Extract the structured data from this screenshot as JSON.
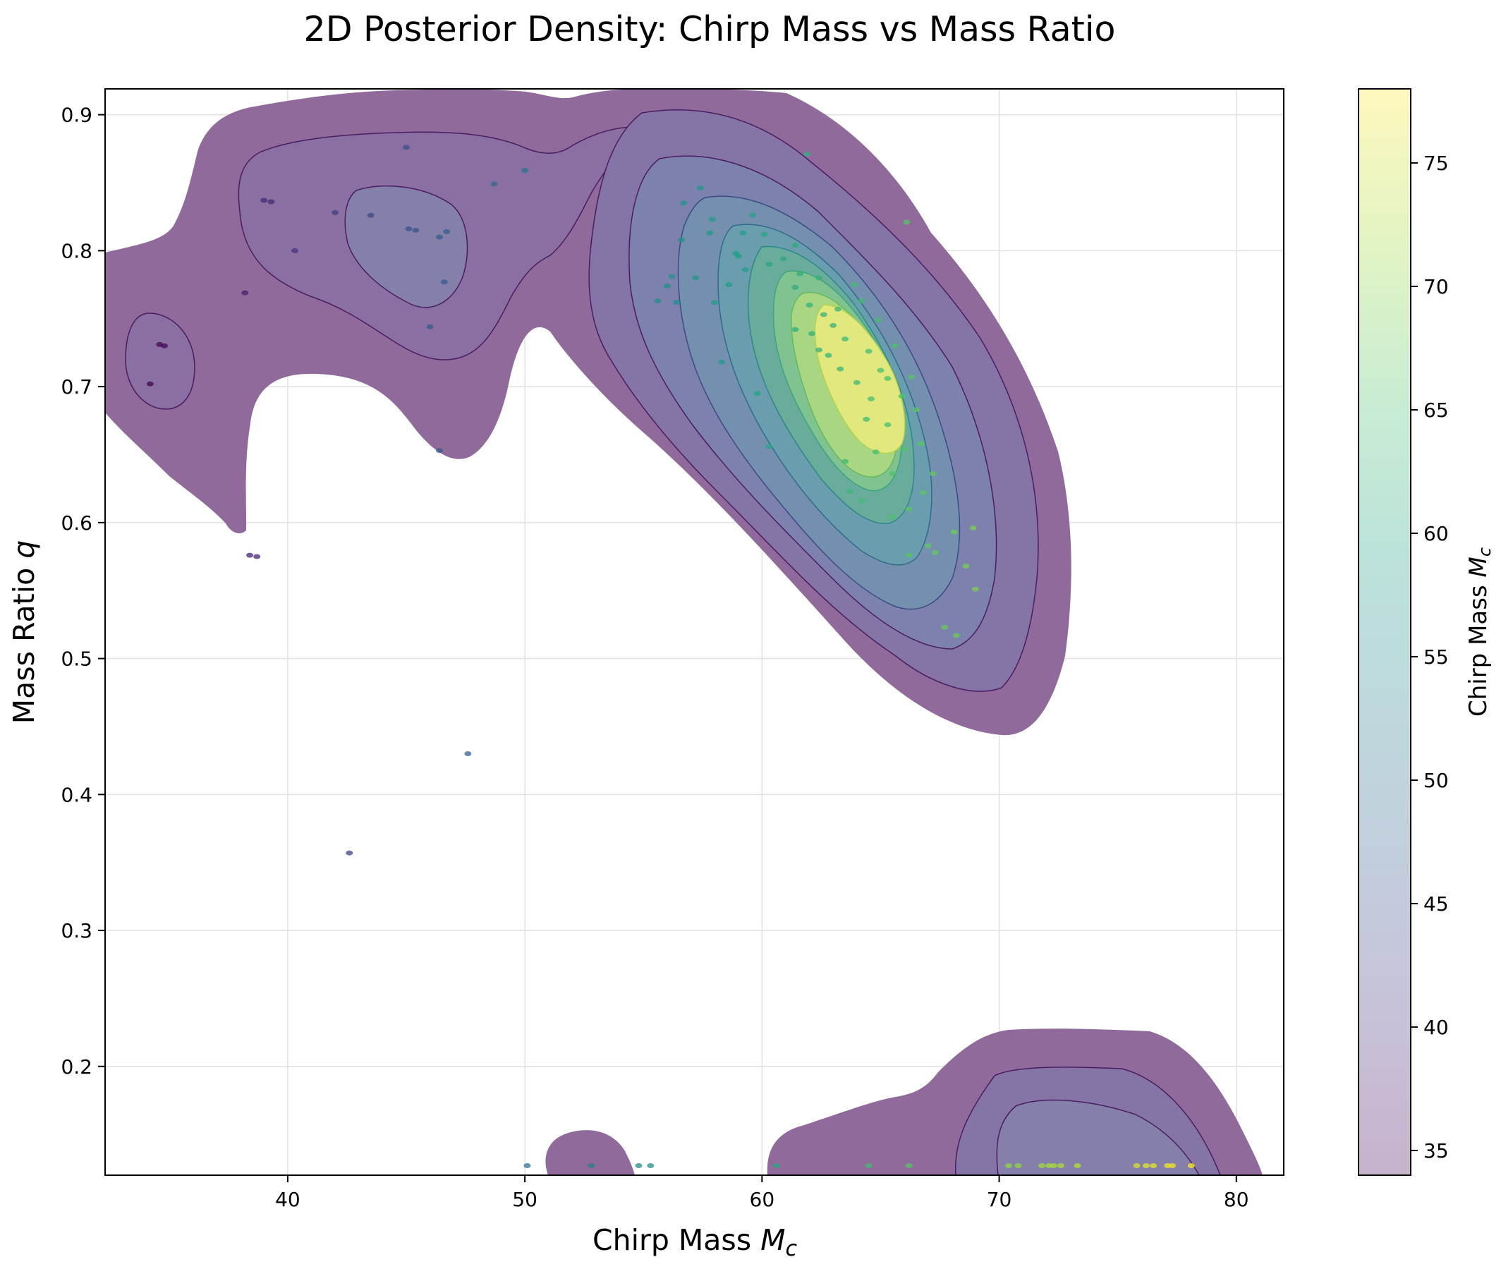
{
  "chart_data": {
    "type": "contour_scatter",
    "title": "2D Posterior Density: Chirp Mass vs Mass Ratio",
    "xlabel": "Chirp Mass",
    "xlabel_symbol": "M",
    "xlabel_sub": "c",
    "ylabel": "Mass Ratio",
    "ylabel_symbol": "q",
    "xlim": [
      32.3,
      82.0
    ],
    "ylim": [
      0.12,
      0.919
    ],
    "x_ticks": [
      40,
      50,
      60,
      70,
      80
    ],
    "y_ticks": [
      0.2,
      0.3,
      0.4,
      0.5,
      0.6,
      0.7,
      0.8,
      0.9
    ],
    "grid": true,
    "colorbar": {
      "label": "Chirp Mass",
      "label_symbol": "M",
      "label_sub": "c",
      "range": [
        34,
        78
      ],
      "ticks": [
        35,
        40,
        45,
        50,
        55,
        60,
        65,
        70,
        75
      ],
      "colormap": "viridis",
      "alpha": 0.3
    },
    "colors": {
      "outer_region": "#8f6a9b",
      "contour_line": "#4a1d63",
      "viridis_stops": [
        "#440154",
        "#46327e",
        "#365c8d",
        "#277f8e",
        "#1fa187",
        "#4ac16d",
        "#a0da39",
        "#fde725"
      ]
    },
    "density_modes": [
      {
        "name": "main",
        "center": [
          64.5,
          0.7
        ],
        "peak_level": "high"
      },
      {
        "name": "upper-left",
        "center": [
          44.5,
          0.81
        ],
        "peak_level": "low"
      },
      {
        "name": "far-left",
        "center": [
          35.0,
          0.715
        ],
        "peak_level": "low"
      },
      {
        "name": "bottom-right",
        "center": [
          74.5,
          0.14
        ],
        "peak_level": "low"
      },
      {
        "name": "bottom-small",
        "center": [
          52.5,
          0.13
        ],
        "peak_level": "low"
      }
    ],
    "scatter_points": [
      [
        34.6,
        0.731
      ],
      [
        34.8,
        0.73
      ],
      [
        34.2,
        0.702
      ],
      [
        38.2,
        0.769
      ],
      [
        38.4,
        0.576
      ],
      [
        38.7,
        0.575
      ],
      [
        39.0,
        0.837
      ],
      [
        39.3,
        0.836
      ],
      [
        40.3,
        0.8
      ],
      [
        42.0,
        0.828
      ],
      [
        42.6,
        0.357
      ],
      [
        43.5,
        0.826
      ],
      [
        45.0,
        0.876
      ],
      [
        45.1,
        0.816
      ],
      [
        45.4,
        0.815
      ],
      [
        46.0,
        0.744
      ],
      [
        46.4,
        0.81
      ],
      [
        46.7,
        0.814
      ],
      [
        46.6,
        0.777
      ],
      [
        46.4,
        0.653
      ],
      [
        47.6,
        0.43
      ],
      [
        48.7,
        0.849
      ],
      [
        50.0,
        0.859
      ],
      [
        50.1,
        0.127
      ],
      [
        52.8,
        0.127
      ],
      [
        54.8,
        0.127
      ],
      [
        55.3,
        0.127
      ],
      [
        56.2,
        0.781
      ],
      [
        56.0,
        0.774
      ],
      [
        55.6,
        0.763
      ],
      [
        56.4,
        0.762
      ],
      [
        56.7,
        0.835
      ],
      [
        57.4,
        0.846
      ],
      [
        56.6,
        0.808
      ],
      [
        57.9,
        0.823
      ],
      [
        57.2,
        0.78
      ],
      [
        57.8,
        0.813
      ],
      [
        58.0,
        0.762
      ],
      [
        58.9,
        0.798
      ],
      [
        59.2,
        0.813
      ],
      [
        58.6,
        0.775
      ],
      [
        58.3,
        0.718
      ],
      [
        59.0,
        0.796
      ],
      [
        59.6,
        0.826
      ],
      [
        59.3,
        0.786
      ],
      [
        60.1,
        0.812
      ],
      [
        60.3,
        0.79
      ],
      [
        60.9,
        0.794
      ],
      [
        59.8,
        0.695
      ],
      [
        60.3,
        0.656
      ],
      [
        61.4,
        0.804
      ],
      [
        61.4,
        0.773
      ],
      [
        61.6,
        0.783
      ],
      [
        61.4,
        0.742
      ],
      [
        62.0,
        0.76
      ],
      [
        62.4,
        0.78
      ],
      [
        62.6,
        0.753
      ],
      [
        62.1,
        0.739
      ],
      [
        62.4,
        0.727
      ],
      [
        63.0,
        0.745
      ],
      [
        63.2,
        0.757
      ],
      [
        62.8,
        0.723
      ],
      [
        63.5,
        0.735
      ],
      [
        63.3,
        0.713
      ],
      [
        63.9,
        0.775
      ],
      [
        64.2,
        0.763
      ],
      [
        64.5,
        0.726
      ],
      [
        64.9,
        0.749
      ],
      [
        64.0,
        0.703
      ],
      [
        64.6,
        0.691
      ],
      [
        64.4,
        0.676
      ],
      [
        65.0,
        0.712
      ],
      [
        65.3,
        0.706
      ],
      [
        65.6,
        0.73
      ],
      [
        65.9,
        0.693
      ],
      [
        66.3,
        0.707
      ],
      [
        65.3,
        0.672
      ],
      [
        64.8,
        0.652
      ],
      [
        63.5,
        0.645
      ],
      [
        63.7,
        0.623
      ],
      [
        64.2,
        0.616
      ],
      [
        65.5,
        0.636
      ],
      [
        66.0,
        0.654
      ],
      [
        66.5,
        0.683
      ],
      [
        66.7,
        0.658
      ],
      [
        65.5,
        0.604
      ],
      [
        66.2,
        0.61
      ],
      [
        66.8,
        0.622
      ],
      [
        67.2,
        0.636
      ],
      [
        66.2,
        0.576
      ],
      [
        67.0,
        0.583
      ],
      [
        67.3,
        0.578
      ],
      [
        68.1,
        0.593
      ],
      [
        68.6,
        0.568
      ],
      [
        68.9,
        0.596
      ],
      [
        69.0,
        0.551
      ],
      [
        67.7,
        0.523
      ],
      [
        68.2,
        0.517
      ],
      [
        60.6,
        0.127
      ],
      [
        64.5,
        0.127
      ],
      [
        66.2,
        0.127
      ],
      [
        70.4,
        0.127
      ],
      [
        70.8,
        0.127
      ],
      [
        71.8,
        0.127
      ],
      [
        72.1,
        0.127
      ],
      [
        72.3,
        0.127
      ],
      [
        72.6,
        0.127
      ],
      [
        73.3,
        0.127
      ],
      [
        75.8,
        0.127
      ],
      [
        76.2,
        0.127
      ],
      [
        76.5,
        0.127
      ],
      [
        77.1,
        0.127
      ],
      [
        77.3,
        0.127
      ],
      [
        78.1,
        0.127
      ],
      [
        61.9,
        0.871
      ],
      [
        66.1,
        0.821
      ]
    ]
  }
}
